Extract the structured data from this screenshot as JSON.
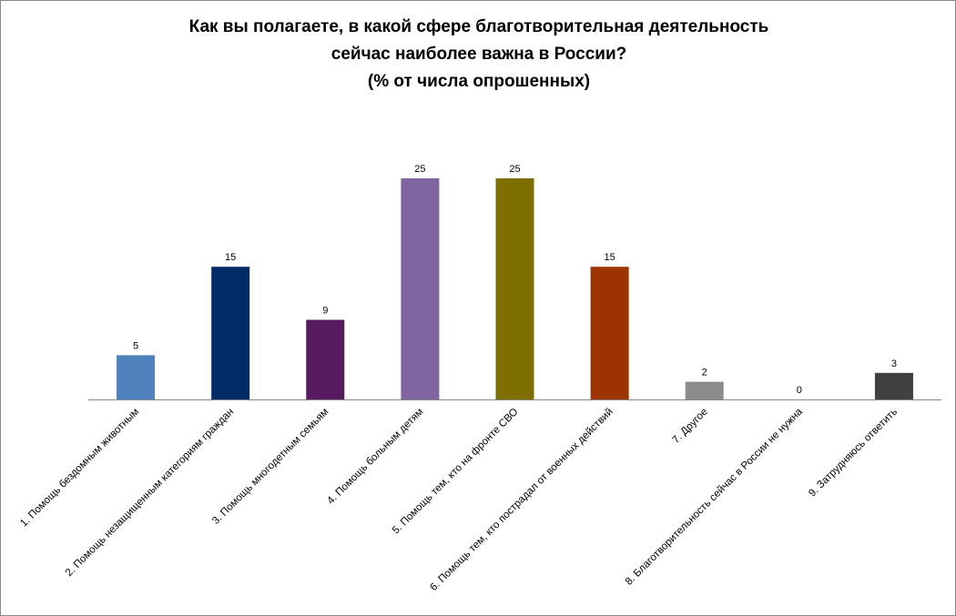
{
  "chart_data": {
    "type": "bar",
    "title_lines": [
      "Как вы полагаете, в какой сфере благотворительная деятельность",
      "сейчас наиболее важна в России?",
      "(% от числа опрошенных)"
    ],
    "categories": [
      "1. Помощь бездомным животным",
      "2. Помощь незащищенным категориям граждан",
      "3. Помощь многодетным семьям",
      "4. Помощь больным детям",
      "5. Помощь тем, кто на фронте СВО",
      "6. Помощь тем, кто пострадал от военных действий",
      "7. Другое",
      "8. Благотворительность сейчас в России не нужна",
      "9. Затрудняюсь ответить"
    ],
    "values": [
      5,
      15,
      9,
      25,
      25,
      15,
      2,
      0,
      3
    ],
    "colors": [
      "#4F81BD",
      "#002B66",
      "#561A5E",
      "#8064A2",
      "#7F6F00",
      "#9C3300",
      "#8C8C8C",
      "#8C8C8C",
      "#404040"
    ],
    "ylim": [
      0,
      25
    ],
    "grid": false,
    "legend": "none",
    "data_labels": true
  }
}
